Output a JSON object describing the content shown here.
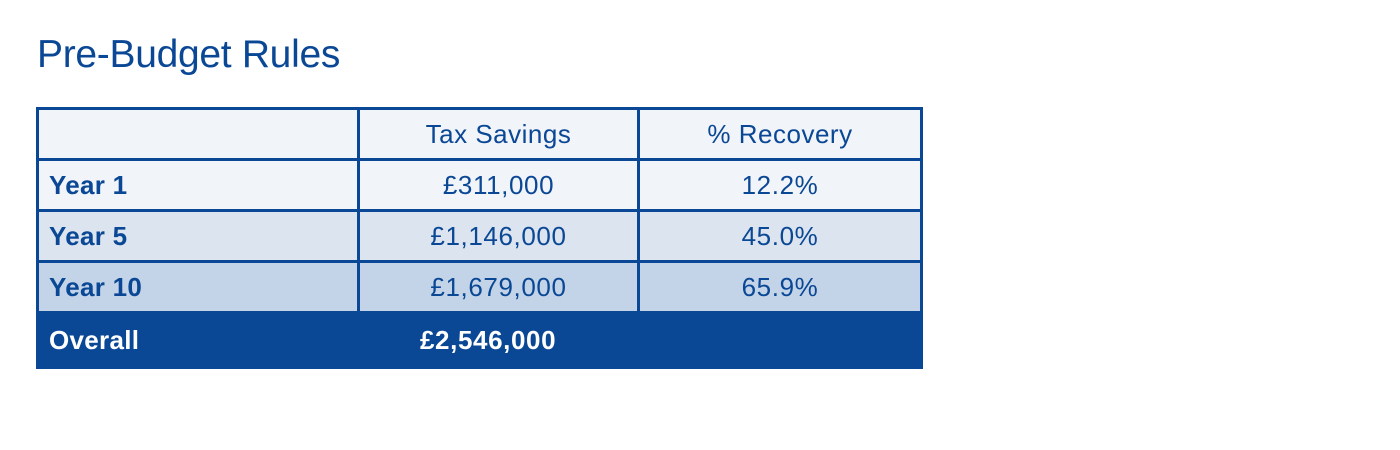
{
  "title": "Pre-Budget Rules",
  "table": {
    "headers": [
      "",
      "Tax Savings",
      "% Recovery"
    ],
    "rows": [
      {
        "label": "Year 1",
        "tax_savings": "£311,000",
        "recovery": "12.2%"
      },
      {
        "label": "Year 5",
        "tax_savings": "£1,146,000",
        "recovery": "45.0%"
      },
      {
        "label": "Year 10",
        "tax_savings": "£1,679,000",
        "recovery": "65.9%"
      }
    ],
    "total": {
      "label": "Overall",
      "tax_savings": "£2,546,000"
    }
  },
  "colors": {
    "brand": "#0a4794",
    "row1": "#f1f4f9",
    "row2": "#dbe4ef",
    "row3": "#c3d4e8",
    "total_text": "#ffffff"
  }
}
